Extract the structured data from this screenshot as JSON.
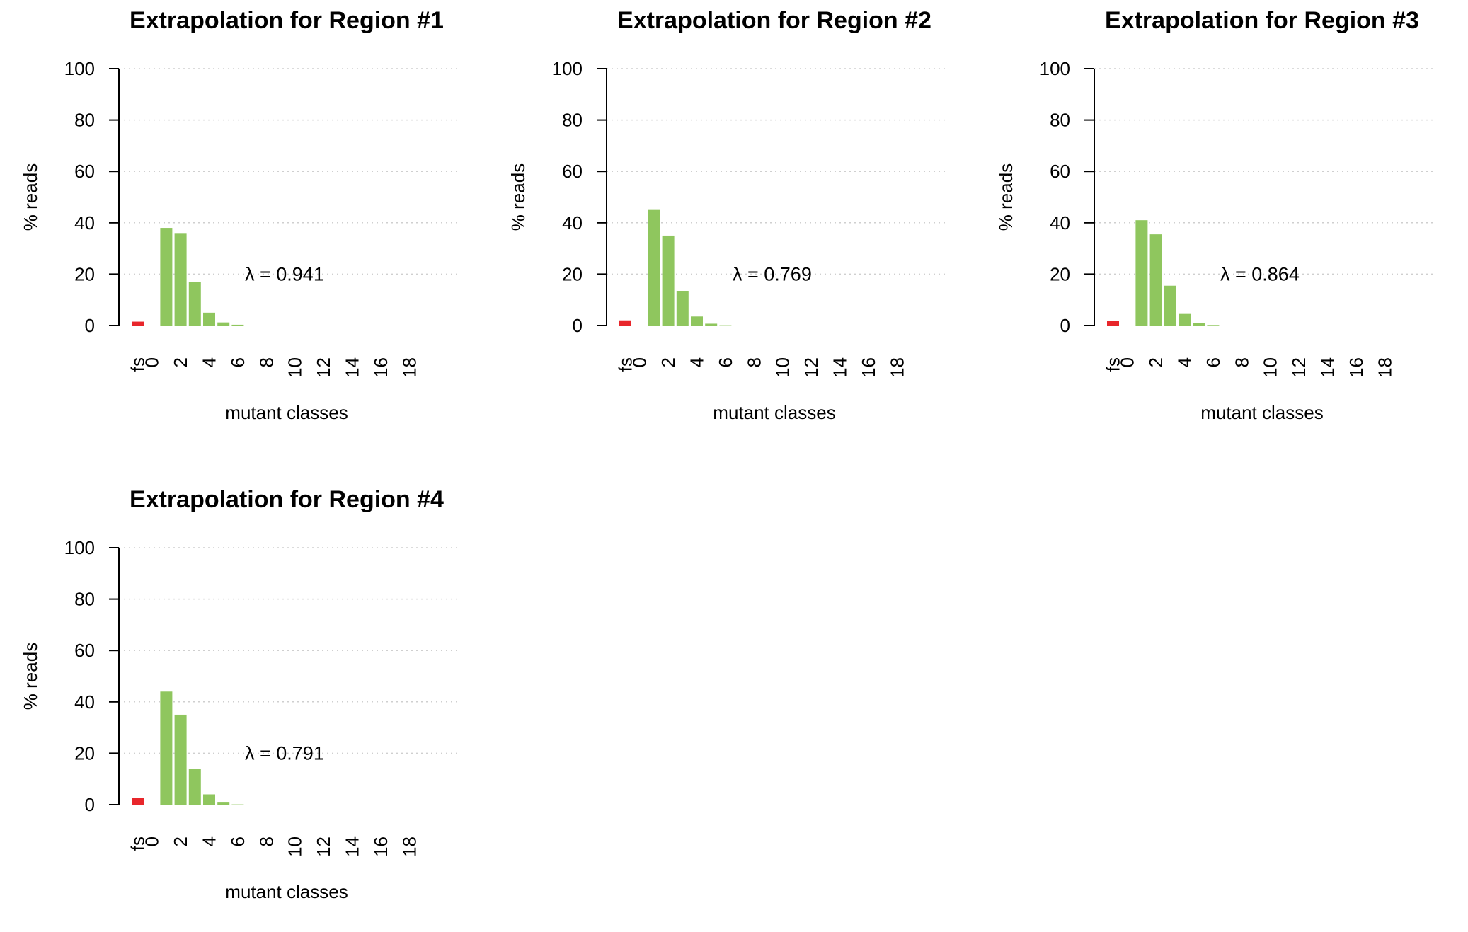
{
  "colors": {
    "fs_bar": "#e8262b",
    "zero_bar": "#bdbdbd",
    "mutant_bar": "#8fc65e",
    "grid": "#cfcfcf",
    "axis": "#000000"
  },
  "chart_data": [
    {
      "type": "bar",
      "title": "Extrapolation for Region #1",
      "xlabel": "mutant classes",
      "ylabel": "% reads",
      "ylim": [
        0,
        100
      ],
      "yticks": [
        "0",
        "20",
        "40",
        "60",
        "80",
        "100"
      ],
      "grid": "horizontal dotted",
      "categories": [
        "fs",
        "0",
        "1",
        "2",
        "3",
        "4",
        "5",
        "6",
        "7",
        "8",
        "9",
        "10",
        "11",
        "12",
        "13",
        "14",
        "15",
        "16",
        "17",
        "18"
      ],
      "xtick_labels": [
        "fs",
        "0",
        "2",
        "4",
        "6",
        "8",
        "10",
        "12",
        "14",
        "16",
        "18"
      ],
      "values": [
        1.5,
        0,
        38,
        36,
        17,
        5,
        1.2,
        0.3,
        0,
        0,
        0,
        0,
        0,
        0,
        0,
        0,
        0,
        0,
        0,
        0
      ],
      "annotation": "λ = 0.941"
    },
    {
      "type": "bar",
      "title": "Extrapolation for Region #2",
      "xlabel": "mutant classes",
      "ylabel": "% reads",
      "ylim": [
        0,
        100
      ],
      "yticks": [
        "0",
        "20",
        "40",
        "60",
        "80",
        "100"
      ],
      "grid": "horizontal dotted",
      "categories": [
        "fs",
        "0",
        "1",
        "2",
        "3",
        "4",
        "5",
        "6",
        "7",
        "8",
        "9",
        "10",
        "11",
        "12",
        "13",
        "14",
        "15",
        "16",
        "17",
        "18"
      ],
      "xtick_labels": [
        "fs",
        "0",
        "2",
        "4",
        "6",
        "8",
        "10",
        "12",
        "14",
        "16",
        "18"
      ],
      "values": [
        2,
        0,
        45,
        35,
        13.5,
        3.5,
        0.7,
        0.1,
        0,
        0,
        0,
        0,
        0,
        0,
        0,
        0,
        0,
        0,
        0,
        0
      ],
      "annotation": "λ = 0.769"
    },
    {
      "type": "bar",
      "title": "Extrapolation for Region #3",
      "xlabel": "mutant classes",
      "ylabel": "% reads",
      "ylim": [
        0,
        100
      ],
      "yticks": [
        "0",
        "20",
        "40",
        "60",
        "80",
        "100"
      ],
      "grid": "horizontal dotted",
      "categories": [
        "fs",
        "0",
        "1",
        "2",
        "3",
        "4",
        "5",
        "6",
        "7",
        "8",
        "9",
        "10",
        "11",
        "12",
        "13",
        "14",
        "15",
        "16",
        "17",
        "18"
      ],
      "xtick_labels": [
        "fs",
        "0",
        "2",
        "4",
        "6",
        "8",
        "10",
        "12",
        "14",
        "16",
        "18"
      ],
      "values": [
        1.8,
        0,
        41,
        35.5,
        15.5,
        4.5,
        1.0,
        0.2,
        0,
        0,
        0,
        0,
        0,
        0,
        0,
        0,
        0,
        0,
        0,
        0
      ],
      "annotation": "λ = 0.864"
    },
    {
      "type": "bar",
      "title": "Extrapolation for Region #4",
      "xlabel": "mutant classes",
      "ylabel": "% reads",
      "ylim": [
        0,
        100
      ],
      "yticks": [
        "0",
        "20",
        "40",
        "60",
        "80",
        "100"
      ],
      "grid": "horizontal dotted",
      "categories": [
        "fs",
        "0",
        "1",
        "2",
        "3",
        "4",
        "5",
        "6",
        "7",
        "8",
        "9",
        "10",
        "11",
        "12",
        "13",
        "14",
        "15",
        "16",
        "17",
        "18"
      ],
      "xtick_labels": [
        "fs",
        "0",
        "2",
        "4",
        "6",
        "8",
        "10",
        "12",
        "14",
        "16",
        "18"
      ],
      "values": [
        2.5,
        0,
        44,
        35,
        14,
        4,
        0.8,
        0.1,
        0,
        0,
        0,
        0,
        0,
        0,
        0,
        0,
        0,
        0,
        0,
        0
      ],
      "annotation": "λ = 0.791"
    }
  ]
}
